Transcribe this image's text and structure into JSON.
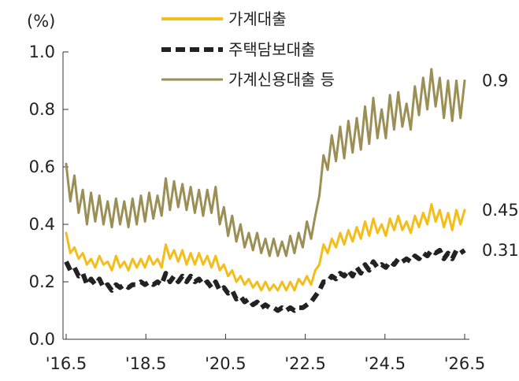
{
  "chart_data": {
    "type": "line",
    "unit": "(%)",
    "ylim": [
      0.0,
      1.0
    ],
    "y_ticks": [
      "0.0",
      "0.2",
      "0.4",
      "0.6",
      "0.8",
      "1.0"
    ],
    "x_ticks": [
      "'16.5",
      "'18.5",
      "'20.5",
      "'22.5",
      "'24.5",
      "'26.5"
    ],
    "x_tick_months": [
      0,
      24,
      48,
      72,
      96,
      120
    ],
    "x_range_months": [
      0,
      120
    ],
    "grid": false,
    "legend_position": "top-center",
    "series": [
      {
        "name": "가계대출",
        "color": "#F4BD1A",
        "style": "solid",
        "end_label": "0.45",
        "values": [
          0.37,
          0.3,
          0.32,
          0.28,
          0.3,
          0.26,
          0.28,
          0.25,
          0.29,
          0.26,
          0.27,
          0.24,
          0.29,
          0.25,
          0.27,
          0.24,
          0.28,
          0.25,
          0.28,
          0.25,
          0.29,
          0.26,
          0.28,
          0.25,
          0.33,
          0.28,
          0.31,
          0.27,
          0.31,
          0.26,
          0.3,
          0.26,
          0.3,
          0.26,
          0.29,
          0.25,
          0.29,
          0.24,
          0.26,
          0.22,
          0.24,
          0.2,
          0.22,
          0.19,
          0.21,
          0.18,
          0.2,
          0.17,
          0.2,
          0.17,
          0.19,
          0.17,
          0.2,
          0.17,
          0.2,
          0.17,
          0.21,
          0.19,
          0.22,
          0.19,
          0.24,
          0.26,
          0.33,
          0.3,
          0.35,
          0.32,
          0.37,
          0.33,
          0.38,
          0.34,
          0.39,
          0.35,
          0.41,
          0.36,
          0.42,
          0.37,
          0.4,
          0.36,
          0.42,
          0.38,
          0.43,
          0.38,
          0.41,
          0.37,
          0.43,
          0.39,
          0.44,
          0.4,
          0.47,
          0.41,
          0.45,
          0.39,
          0.44,
          0.38,
          0.45,
          0.4,
          0.45
        ]
      },
      {
        "name": "주택담보대출",
        "color": "#222222",
        "style": "dashed",
        "end_label": "0.31",
        "values": [
          0.27,
          0.24,
          0.25,
          0.22,
          0.23,
          0.19,
          0.21,
          0.19,
          0.21,
          0.18,
          0.19,
          0.17,
          0.19,
          0.18,
          0.19,
          0.18,
          0.19,
          0.19,
          0.2,
          0.19,
          0.2,
          0.19,
          0.2,
          0.19,
          0.23,
          0.2,
          0.22,
          0.2,
          0.22,
          0.2,
          0.22,
          0.2,
          0.21,
          0.19,
          0.2,
          0.18,
          0.2,
          0.17,
          0.18,
          0.16,
          0.17,
          0.14,
          0.15,
          0.13,
          0.14,
          0.12,
          0.13,
          0.11,
          0.12,
          0.11,
          0.11,
          0.1,
          0.11,
          0.1,
          0.11,
          0.1,
          0.11,
          0.11,
          0.12,
          0.13,
          0.15,
          0.17,
          0.2,
          0.2,
          0.22,
          0.21,
          0.23,
          0.22,
          0.24,
          0.22,
          0.25,
          0.23,
          0.26,
          0.24,
          0.27,
          0.25,
          0.26,
          0.25,
          0.27,
          0.26,
          0.28,
          0.27,
          0.28,
          0.27,
          0.29,
          0.28,
          0.3,
          0.29,
          0.31,
          0.3,
          0.31,
          0.28,
          0.3,
          0.28,
          0.31,
          0.3,
          0.31
        ]
      },
      {
        "name": "가계신용대출 등",
        "color": "#9B8F55",
        "style": "solid",
        "end_label": "0.9",
        "values": [
          0.61,
          0.48,
          0.57,
          0.44,
          0.52,
          0.4,
          0.51,
          0.41,
          0.5,
          0.4,
          0.48,
          0.39,
          0.49,
          0.4,
          0.48,
          0.39,
          0.49,
          0.4,
          0.5,
          0.41,
          0.51,
          0.42,
          0.5,
          0.43,
          0.56,
          0.45,
          0.55,
          0.46,
          0.54,
          0.45,
          0.53,
          0.44,
          0.52,
          0.43,
          0.52,
          0.44,
          0.53,
          0.4,
          0.46,
          0.36,
          0.43,
          0.34,
          0.4,
          0.32,
          0.37,
          0.31,
          0.37,
          0.3,
          0.35,
          0.29,
          0.35,
          0.29,
          0.34,
          0.29,
          0.36,
          0.3,
          0.37,
          0.32,
          0.41,
          0.35,
          0.43,
          0.5,
          0.64,
          0.59,
          0.71,
          0.62,
          0.74,
          0.63,
          0.76,
          0.65,
          0.77,
          0.66,
          0.81,
          0.68,
          0.84,
          0.7,
          0.8,
          0.7,
          0.85,
          0.73,
          0.86,
          0.74,
          0.82,
          0.73,
          0.88,
          0.78,
          0.91,
          0.8,
          0.94,
          0.81,
          0.91,
          0.77,
          0.9,
          0.76,
          0.9,
          0.77,
          0.9
        ]
      }
    ]
  }
}
